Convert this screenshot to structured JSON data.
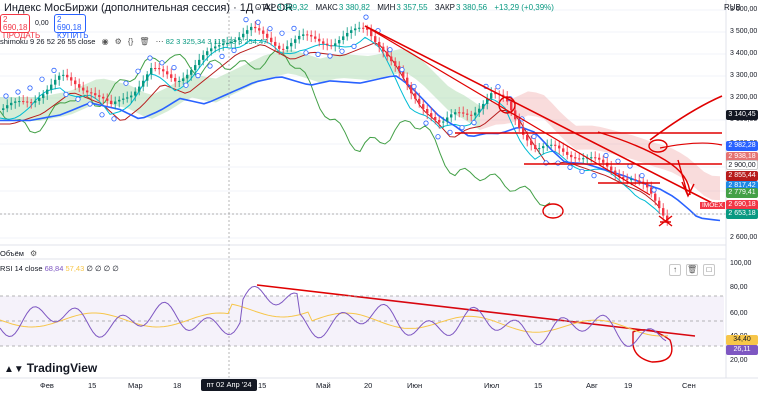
{
  "header": {
    "title": "Индекс МосБиржи (дополнительная сессия) · 1Д · ALOR",
    "currency": "RUB",
    "ohlc": [
      {
        "label": "ОТКР",
        "value": "3 369,32"
      },
      {
        "label": "МАКС",
        "value": "3 380,82"
      },
      {
        "label": "МИН",
        "value": "3 357,55"
      },
      {
        "label": "ЗАКР",
        "value": "3 380,56"
      },
      {
        "label": "",
        "value": "+13,29 (+0,39%)"
      }
    ]
  },
  "trade": {
    "sell_price": "2 690,18",
    "sell_label": "ПРОДАТЬ",
    "spread": "0,00",
    "buy_price": "2 690,18",
    "buy_label": "КУПИТЬ"
  },
  "indicator": {
    "label": "shimoku 9 26 52 26 55 close",
    "values": "82  3 325,34  3 119,28  3 254,47"
  },
  "pane2": {
    "label": "Объём",
    "rsi_label": "RSI 14 close",
    "rsi_value": "68,84",
    "rsi_ma": "57,43",
    "rsi_extra": "∅ ∅ ∅ ∅"
  },
  "y_axis": {
    "main_labels": [
      "3 600,00",
      "3 500,00",
      "3 400,00",
      "3 300,00",
      "3 200,00",
      "3 100,00",
      "3 000,00",
      "2 900,00",
      "2 800,00",
      "2 700,00",
      "2 600,00"
    ],
    "rsi_labels": [
      "100,00",
      "80,00",
      "60,00",
      "40,00",
      "20,00"
    ],
    "tags": [
      {
        "text": "3 140,45",
        "color": "#131722"
      },
      {
        "text": "2 982,28",
        "color": "#2962ff"
      },
      {
        "text": "2 938,18",
        "color": "#e57373"
      },
      {
        "text": "2 900,00",
        "color": "#ffffff"
      },
      {
        "text": "2 855,44",
        "color": "#b71c1c"
      },
      {
        "text": "2 817,42",
        "color": "#1e88e5"
      },
      {
        "text": "2 779,41",
        "color": "#43a047"
      },
      {
        "text": "2 690,18",
        "color": "#f23645"
      },
      {
        "text": "2 653,18",
        "color": "#089981"
      },
      {
        "text": "34,40",
        "color": "#f7c64a"
      },
      {
        "text": "26,11",
        "color": "#7e57c2"
      }
    ],
    "imoex_label": "IMOEX"
  },
  "x_axis": {
    "labels": [
      "Фев",
      "15",
      "Мар",
      "18",
      "15",
      "Май",
      "20",
      "Июн",
      "Июл",
      "15",
      "Авг",
      "19",
      "Сен"
    ],
    "cursor_label": "пт 02 Апр '24"
  },
  "brand": {
    "name": "TradingView"
  },
  "colors": {
    "up": "#089981",
    "down": "#f23645",
    "drawing": "#e00000",
    "baseline": "#2962ff",
    "conversion": "#00bcd4",
    "lagging": "#43a047",
    "leading": "#b71c1c",
    "rsi": "#7e57c2"
  }
}
